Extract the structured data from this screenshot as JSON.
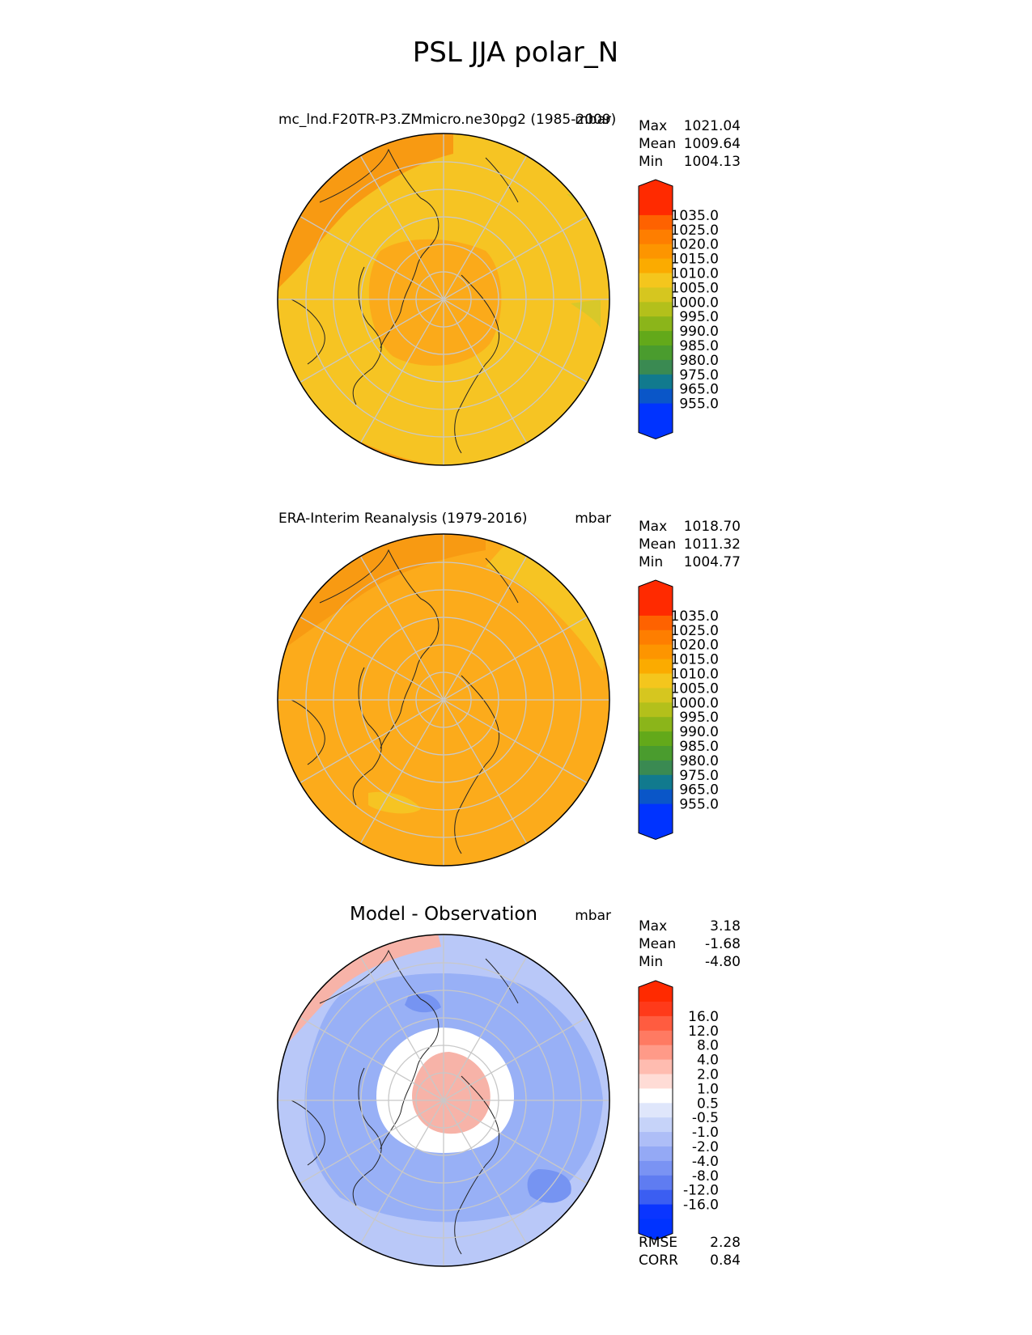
{
  "figure_title": "PSL JJA polar_N",
  "panels": [
    {
      "title": "mc_lnd.F20TR-P3.ZMmicro.ne30pg2 (1985-2009)",
      "units": "mbar",
      "stats": [
        {
          "label": "Max",
          "value": "1021.04"
        },
        {
          "label": "Mean",
          "value": "1009.64"
        },
        {
          "label": "Min",
          "value": "1004.13"
        }
      ],
      "base_color": "#f6c423",
      "patches": [
        {
          "color": "#f89a12",
          "desc": "north pacific rim"
        },
        {
          "color": "#fbaa1a",
          "desc": "central arctic"
        },
        {
          "color": "#f89a12",
          "desc": "atlantic rim"
        },
        {
          "color": "#d8c82a",
          "desc": "east rim"
        }
      ]
    },
    {
      "title": "ERA-Interim Reanalysis (1979-2016)",
      "units": "mbar",
      "stats": [
        {
          "label": "Max",
          "value": "1018.70"
        },
        {
          "label": "Mean",
          "value": "1011.32"
        },
        {
          "label": "Min",
          "value": "1004.77"
        }
      ],
      "base_color": "#fcab1b",
      "patches": [
        {
          "color": "#f89a12",
          "desc": "pacific rim"
        },
        {
          "color": "#f6c423",
          "desc": "eurasian side"
        },
        {
          "color": "#f6c423",
          "desc": "greenland south"
        }
      ]
    },
    {
      "title": "Model - Observation",
      "units": "mbar",
      "stats": [
        {
          "label": "Max",
          "value": "3.18"
        },
        {
          "label": "Mean",
          "value": "-1.68"
        },
        {
          "label": "Min",
          "value": "-4.80"
        }
      ],
      "extra_stats": [
        {
          "label": "RMSE",
          "value": "2.28"
        },
        {
          "label": "CORR",
          "value": "0.84"
        }
      ],
      "base_color": "#b9c8f8",
      "patches": [
        {
          "color": "#98b0f6",
          "desc": "broad negative"
        },
        {
          "color": "#f7b3a8",
          "desc": "pacific positive"
        },
        {
          "color": "#ffffff",
          "desc": "ring near zero"
        },
        {
          "color": "#f7b3a8",
          "desc": "pole positive"
        },
        {
          "color": "#7694f2",
          "desc": "strong negative patch"
        }
      ]
    }
  ],
  "colorbars": {
    "psl": {
      "labels": [
        "1035.0",
        "1025.0",
        "1020.0",
        "1015.0",
        "1010.0",
        "1005.0",
        "1000.0",
        "995.0",
        "990.0",
        "985.0",
        "980.0",
        "975.0",
        "965.0",
        "955.0"
      ],
      "colors": [
        "#ff2a00",
        "#fe6200",
        "#fe7e00",
        "#fd9500",
        "#fbab00",
        "#f4c61d",
        "#d6c61f",
        "#b3c01b",
        "#8bb51a",
        "#63a91a",
        "#4a9c2e",
        "#3a8a52",
        "#117a8e",
        "#0a56c8",
        "#0033ff"
      ],
      "top_cap": "#ff2a00",
      "bottom_cap": "#0033ff"
    },
    "diff": {
      "labels": [
        "16.0",
        "12.0",
        "8.0",
        "4.0",
        "2.0",
        "1.0",
        "0.5",
        "-0.5",
        "-1.0",
        "-2.0",
        "-4.0",
        "-8.0",
        "-12.0",
        "-16.0"
      ],
      "colors": [
        "#ff3a1a",
        "#ff5c40",
        "#ff7a62",
        "#ff9a88",
        "#ffbcb0",
        "#ffdcd6",
        "#ffffff",
        "#dfe6fb",
        "#c6d3f9",
        "#aebef7",
        "#94a9f5",
        "#7a93f3",
        "#5f7cf1",
        "#3b5ef2",
        "#0a35ff"
      ],
      "top_cap": "#ff2a00",
      "bottom_cap": "#0033ff"
    }
  }
}
